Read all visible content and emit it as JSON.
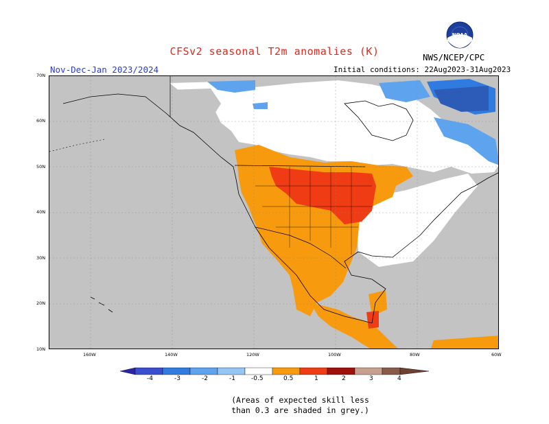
{
  "title": "CFSv2 seasonal T2m anomalies (K)",
  "period": "Nov-Dec-Jan 2023/2024",
  "initial_conditions": "Initial conditions: 22Aug2023-31Aug2023",
  "agency": "NWS/NCEP/CPC",
  "logo_text": "NOAA",
  "lat_labels": [
    "70N",
    "60N",
    "50N",
    "40N",
    "30N",
    "20N",
    "10N"
  ],
  "lon_labels": [
    "160W",
    "140W",
    "120W",
    "100W",
    "80W",
    "60W"
  ],
  "legend": {
    "labels": [
      "-4",
      "-3",
      "-2",
      "-1",
      "-0.5",
      "0.5",
      "1",
      "2",
      "3",
      "4"
    ],
    "colors": [
      "#2c24a8",
      "#3a4fd0",
      "#2f7be0",
      "#5ea3ee",
      "#96c4f4",
      "#ffffff",
      "#f79a0e",
      "#f03c14",
      "#a0100c",
      "#c8a090",
      "#6e4032"
    ]
  },
  "note_line1": "(Areas of expected skill less",
  "note_line2": "than 0.3 are shaded in grey.)",
  "colors": {
    "skill_grey": "#c3c3c3",
    "neutral_white": "#ffffff",
    "orange_0_5_1": "#f79a0e",
    "red_1_2": "#f03c14",
    "lightblue_neg": "#5ea3ee",
    "blue_neg": "#2f7be0",
    "darkblue_neg": "#2c5cb8"
  }
}
